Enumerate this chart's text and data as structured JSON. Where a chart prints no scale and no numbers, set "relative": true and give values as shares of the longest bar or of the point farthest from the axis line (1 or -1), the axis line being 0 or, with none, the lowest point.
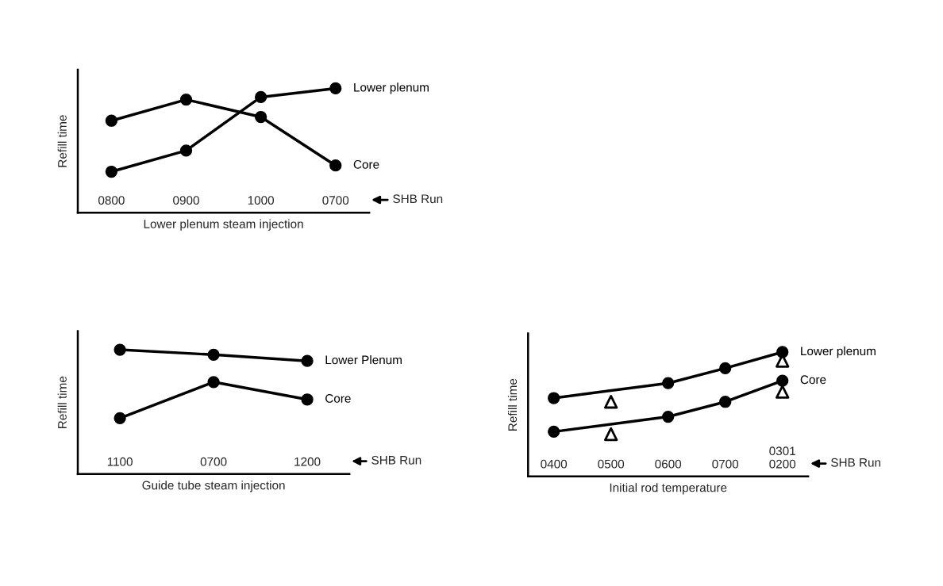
{
  "chart_data": [
    {
      "type": "line",
      "relative": true,
      "xlabel": "Lower plenum steam injection",
      "ylabel": "Refill time",
      "categories": [
        "0800",
        "0900",
        "1000",
        "0700"
      ],
      "marker": "circle",
      "line_style": "solid",
      "annotations": [
        "SHB Run"
      ],
      "series": [
        {
          "name": "Lower plenum",
          "color": "#000000",
          "values": [
            0.33,
            0.5,
            0.93,
            1.0
          ]
        },
        {
          "name": "Core",
          "color": "#000000",
          "values": [
            0.74,
            0.91,
            0.77,
            0.38
          ]
        }
      ]
    },
    {
      "type": "line",
      "relative": true,
      "xlabel": "Guide tube steam injection",
      "ylabel": "Refill time",
      "categories": [
        "1100",
        "0700",
        "1200"
      ],
      "marker": "circle",
      "line_style": "solid",
      "annotations": [
        "SHB Run"
      ],
      "series": [
        {
          "name": "Lower Plenum",
          "color": "#000000",
          "values": [
            1.0,
            0.96,
            0.91
          ]
        },
        {
          "name": "Core",
          "color": "#000000",
          "values": [
            0.45,
            0.74,
            0.6
          ]
        }
      ]
    },
    {
      "type": "line",
      "relative": true,
      "xlabel": "Initial rod temperature",
      "ylabel": "Refill time",
      "categories": [
        "0400",
        "0500",
        "0600",
        "0700",
        "0301\n0200"
      ],
      "marker": "circle",
      "line_style": "solid",
      "annotations": [
        "SHB Run"
      ],
      "series": [
        {
          "name": "Lower plenum",
          "color": "#000000",
          "values": [
            0.63,
            null,
            0.75,
            0.87,
            1.0
          ]
        },
        {
          "name": "Core",
          "color": "#000000",
          "values": [
            0.36,
            null,
            0.48,
            0.6,
            0.77
          ]
        },
        {
          "type": "scatter",
          "marker": "triangle",
          "color": "#000000",
          "values": [
            null,
            0.6,
            null,
            null,
            0.93
          ]
        },
        {
          "type": "scatter",
          "marker": "triangle",
          "color": "#000000",
          "values": [
            null,
            0.34,
            null,
            null,
            0.68
          ]
        }
      ]
    }
  ]
}
